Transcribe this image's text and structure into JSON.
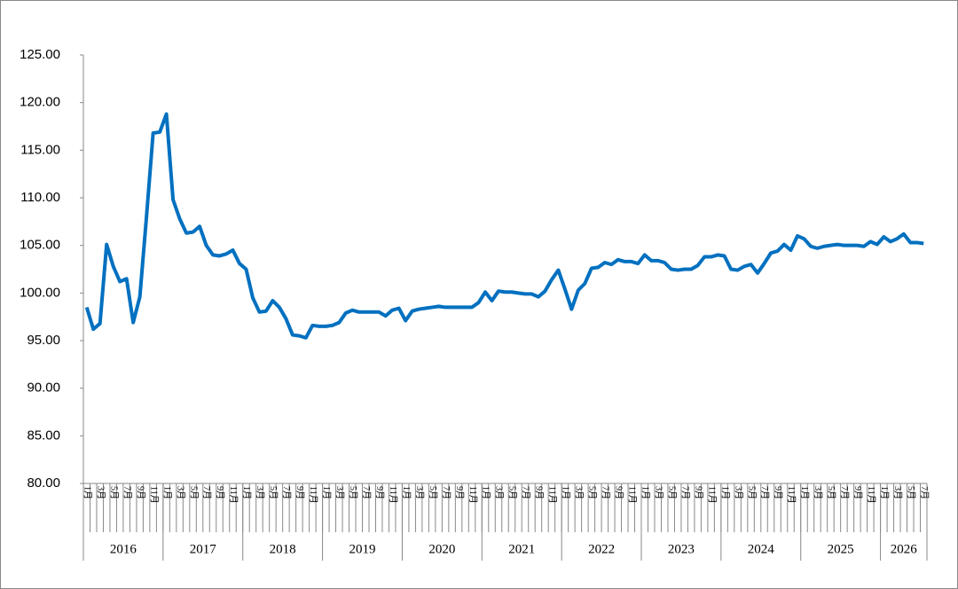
{
  "chart_data": {
    "type": "line",
    "categories": [
      "1月",
      null,
      "3月",
      null,
      "5月",
      null,
      "7月",
      null,
      "9月",
      null,
      "11月",
      null,
      "1月",
      null,
      "3月",
      null,
      "5月",
      null,
      "7月",
      null,
      "9月",
      null,
      "11月",
      null,
      "1月",
      null,
      "3月",
      null,
      "5月",
      null,
      "7月",
      null,
      "9月",
      null,
      "11月",
      null,
      "1月",
      null,
      "3月",
      null,
      "5月",
      null,
      "7月",
      null,
      "9月",
      null,
      "11月",
      null,
      "1月",
      null,
      "3月",
      null,
      "5月",
      null,
      "7月",
      null,
      "9月",
      null,
      "11月",
      null,
      "1月",
      null,
      "3月",
      null,
      "5月",
      null,
      "7月",
      null,
      "9月",
      null,
      "11月",
      null,
      "1月",
      null,
      "3月",
      null,
      "5月",
      null,
      "7月",
      null,
      "9月",
      null,
      "11月",
      null,
      "1月",
      null,
      "3月",
      null,
      "5月",
      null,
      "7月",
      null,
      "9月",
      null,
      "11月",
      null,
      "1月",
      null,
      "3月",
      null,
      "5月",
      null,
      "7月",
      null,
      "9月",
      null,
      "11月",
      null,
      "1月",
      null,
      "3月",
      null,
      "5月",
      null,
      "7月",
      null,
      "9月",
      null,
      "11月",
      null,
      "1月",
      null,
      "3月",
      null,
      "5月",
      null,
      "7月"
    ],
    "years": [
      "2016",
      "2017",
      "2018",
      "2019",
      "2020",
      "2021",
      "2022",
      "2023",
      "2024",
      "2025",
      "2026"
    ],
    "series": [
      {
        "color": "#0070c0",
        "values": [
          98.5,
          96.2,
          96.8,
          105.1,
          102.8,
          101.2,
          101.5,
          96.9,
          99.6,
          108.0,
          116.8,
          116.9,
          118.8,
          109.8,
          107.8,
          106.3,
          106.4,
          107.0,
          105.0,
          104.0,
          103.9,
          104.1,
          104.5,
          103.1,
          102.5,
          99.5,
          98.0,
          98.1,
          99.2,
          98.5,
          97.3,
          95.6,
          95.5,
          95.3,
          96.6,
          96.5,
          96.5,
          96.6,
          96.9,
          97.9,
          98.2,
          98.0,
          98.0,
          98.0,
          98.0,
          97.6,
          98.2,
          98.4,
          97.1,
          98.1,
          98.3,
          98.4,
          98.5,
          98.6,
          98.5,
          98.5,
          98.5,
          98.5,
          98.5,
          99.0,
          100.1,
          99.2,
          100.2,
          100.1,
          100.1,
          100.0,
          99.9,
          99.9,
          99.6,
          100.2,
          101.4,
          102.4,
          100.4,
          98.3,
          100.3,
          101.0,
          102.6,
          102.7,
          103.2,
          103.0,
          103.5,
          103.3,
          103.3,
          103.1,
          104.0,
          103.4,
          103.4,
          103.2,
          102.5,
          102.4,
          102.5,
          102.5,
          102.9,
          103.8,
          103.8,
          104.0,
          103.9,
          102.5,
          102.4,
          102.8,
          103.0,
          102.1,
          103.1,
          104.2,
          104.4,
          105.1,
          104.5,
          106.0,
          105.7,
          104.9,
          104.7,
          104.9,
          105.0,
          105.1,
          105.0,
          105.0,
          105.0,
          104.9,
          105.4,
          105.1,
          105.9,
          105.4,
          105.7,
          106.2,
          105.3,
          105.3,
          105.2
        ]
      }
    ],
    "ylim": [
      80,
      125
    ],
    "yticks": [
      {
        "value": 80,
        "label": "80.00"
      },
      {
        "value": 85,
        "label": "85.00"
      },
      {
        "value": 90,
        "label": "90.00"
      },
      {
        "value": 95,
        "label": "95.00"
      },
      {
        "value": 100,
        "label": "100.00"
      },
      {
        "value": 105,
        "label": "105.00"
      },
      {
        "value": 110,
        "label": "110.00"
      },
      {
        "value": 115,
        "label": "115.00"
      },
      {
        "value": 120,
        "label": "120.00"
      },
      {
        "value": 125,
        "label": "125.00"
      }
    ]
  }
}
